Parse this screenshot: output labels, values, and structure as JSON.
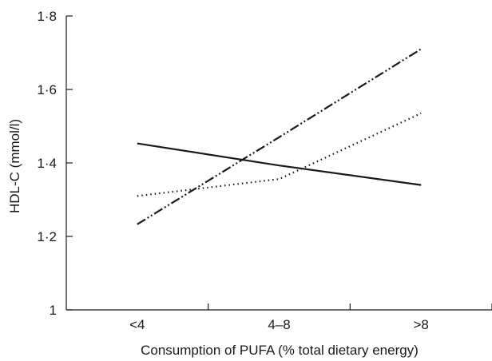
{
  "chart_data": {
    "type": "line",
    "title": "",
    "xlabel": "Consumption of PUFA (% total dietary energy)",
    "ylabel": "HDL-C (mmol/l)",
    "categories": [
      "<4",
      "4–8",
      ">8"
    ],
    "ylim": [
      1,
      1.8
    ],
    "yticks": [
      1,
      1.2,
      1.4,
      1.6,
      1.8
    ],
    "ytick_labels": [
      "1",
      "1·2",
      "1·4",
      "1·6",
      "1·8"
    ],
    "grid": false,
    "legend": "none",
    "series": [
      {
        "line_style": "solid",
        "color": "#1a1a1a",
        "values": [
          1.453,
          1.393,
          1.34
        ]
      },
      {
        "line_style": "dotted",
        "color": "#1a1a1a",
        "values": [
          1.31,
          1.356,
          1.535
        ]
      },
      {
        "line_style": "dash-dot-dot",
        "color": "#1a1a1a",
        "values": [
          1.233,
          1.47,
          1.71
        ]
      }
    ]
  }
}
